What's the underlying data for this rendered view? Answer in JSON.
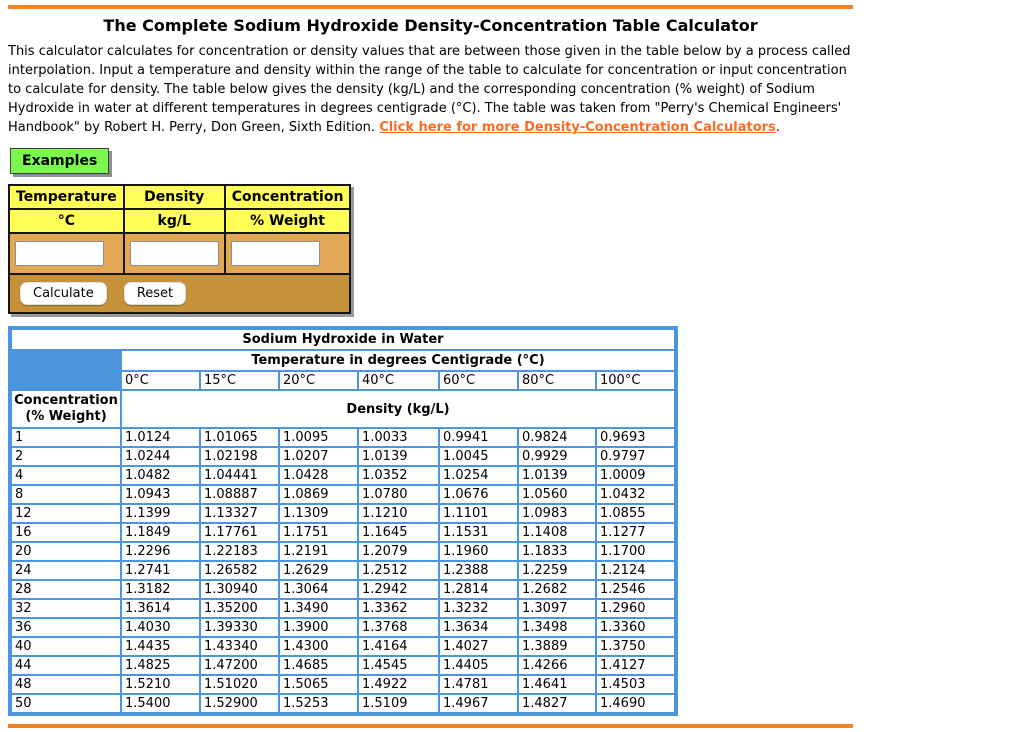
{
  "page": {
    "title": "The Complete Sodium Hydroxide Density-Concentration Table Calculator",
    "description": "This calculator calculates for concentration or density values that are between those given in the table below by a process called interpolation. Input a temperature and density within the range of the table to calculate for concentration or input concentration to calculate for density. The table below gives the density (kg/L) and the corresponding concentration (% weight) of Sodium Hydroxide in water at different temperatures in degrees centigrade (°C). The table was taken from \"Perry's Chemical Engineers' Handbook\" by Robert H. Perry, Don Green, Sixth Edition. ",
    "link_label": "Click here for more Density-Concentration Calculators",
    "link_suffix": "."
  },
  "examples_button_label": "Examples",
  "input_table": {
    "columns": [
      {
        "label": "Temperature",
        "unit": "°C"
      },
      {
        "label": "Density",
        "unit": "kg/L"
      },
      {
        "label": "Concentration",
        "unit": "% Weight"
      }
    ],
    "inputs": [
      {
        "name": "temperature",
        "value": ""
      },
      {
        "name": "density",
        "value": ""
      },
      {
        "name": "concentration",
        "value": ""
      }
    ],
    "calculate_label": "Calculate",
    "reset_label": "Reset"
  },
  "data_table": {
    "title": "Sodium Hydroxide in Water",
    "temp_header": "Temperature in degrees Centigrade (°C)",
    "temp_columns": [
      "0°C",
      "15°C",
      "20°C",
      "40°C",
      "60°C",
      "80°C",
      "100°C"
    ],
    "row_header_line1": "Concentration",
    "row_header_line2": "(% Weight)",
    "density_header": "Density (kg/L)",
    "rows": [
      {
        "concentration": "1",
        "densities": [
          "1.0124",
          "1.01065",
          "1.0095",
          "1.0033",
          "0.9941",
          "0.9824",
          "0.9693"
        ]
      },
      {
        "concentration": "2",
        "densities": [
          "1.0244",
          "1.02198",
          "1.0207",
          "1.0139",
          "1.0045",
          "0.9929",
          "0.9797"
        ]
      },
      {
        "concentration": "4",
        "densities": [
          "1.0482",
          "1.04441",
          "1.0428",
          "1.0352",
          "1.0254",
          "1.0139",
          "1.0009"
        ]
      },
      {
        "concentration": "8",
        "densities": [
          "1.0943",
          "1.08887",
          "1.0869",
          "1.0780",
          "1.0676",
          "1.0560",
          "1.0432"
        ]
      },
      {
        "concentration": "12",
        "densities": [
          "1.1399",
          "1.13327",
          "1.1309",
          "1.1210",
          "1.1101",
          "1.0983",
          "1.0855"
        ]
      },
      {
        "concentration": "16",
        "densities": [
          "1.1849",
          "1.17761",
          "1.1751",
          "1.1645",
          "1.1531",
          "1.1408",
          "1.1277"
        ]
      },
      {
        "concentration": "20",
        "densities": [
          "1.2296",
          "1.22183",
          "1.2191",
          "1.2079",
          "1.1960",
          "1.1833",
          "1.1700"
        ]
      },
      {
        "concentration": "24",
        "densities": [
          "1.2741",
          "1.26582",
          "1.2629",
          "1.2512",
          "1.2388",
          "1.2259",
          "1.2124"
        ]
      },
      {
        "concentration": "28",
        "densities": [
          "1.3182",
          "1.30940",
          "1.3064",
          "1.2942",
          "1.2814",
          "1.2682",
          "1.2546"
        ]
      },
      {
        "concentration": "32",
        "densities": [
          "1.3614",
          "1.35200",
          "1.3490",
          "1.3362",
          "1.3232",
          "1.3097",
          "1.2960"
        ]
      },
      {
        "concentration": "36",
        "densities": [
          "1.4030",
          "1.39330",
          "1.3900",
          "1.3768",
          "1.3634",
          "1.3498",
          "1.3360"
        ]
      },
      {
        "concentration": "40",
        "densities": [
          "1.4435",
          "1.43340",
          "1.4300",
          "1.4164",
          "1.4027",
          "1.3889",
          "1.3750"
        ]
      },
      {
        "concentration": "44",
        "densities": [
          "1.4825",
          "1.47200",
          "1.4685",
          "1.4545",
          "1.4405",
          "1.4266",
          "1.4127"
        ]
      },
      {
        "concentration": "48",
        "densities": [
          "1.5210",
          "1.51020",
          "1.5065",
          "1.4922",
          "1.4781",
          "1.4641",
          "1.4503"
        ]
      },
      {
        "concentration": "50",
        "densities": [
          "1.5400",
          "1.52900",
          "1.5253",
          "1.5109",
          "1.4967",
          "1.4827",
          "1.4690"
        ]
      }
    ]
  },
  "colors": {
    "accent_orange": "#F58220",
    "link_orange": "#FF6A22",
    "table_blue": "#4D96DD",
    "header_yellow": "#FFFF55",
    "panel_tan_light": "#E3A855",
    "panel_tan_dark": "#C5923A",
    "button_green": "#7BF94E"
  }
}
